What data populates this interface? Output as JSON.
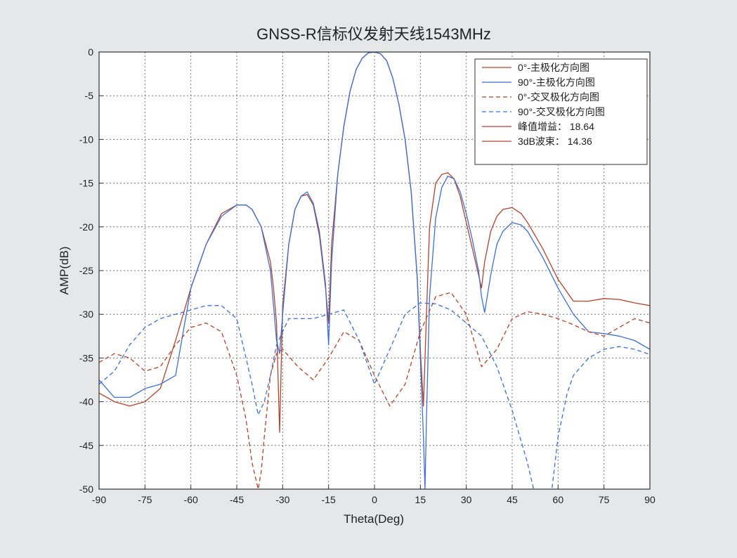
{
  "chart_data": {
    "type": "line",
    "title": "GNSS-R信标仪发射天线1543MHz",
    "xlabel": "Theta(Deg)",
    "ylabel": "AMP(dB)",
    "xlim": [
      -90,
      90
    ],
    "ylim": [
      -50,
      0
    ],
    "xticks": [
      -90,
      -75,
      -60,
      -45,
      -30,
      -15,
      0,
      15,
      30,
      45,
      60,
      75,
      90
    ],
    "yticks": [
      0,
      -5,
      -10,
      -15,
      -20,
      -25,
      -30,
      -35,
      -40,
      -45,
      -50
    ],
    "grid": true,
    "legend_position": "top-right",
    "series": [
      {
        "name": "0°-主极化方向图",
        "color": "#b5422e",
        "dash": "solid",
        "x": [
          -90,
          -85,
          -80,
          -75,
          -70,
          -65,
          -60,
          -55,
          -50,
          -45,
          -42,
          -40,
          -37,
          -34,
          -33,
          -32,
          -31,
          -30,
          -28,
          -26,
          -24,
          -22,
          -20,
          -18,
          -16,
          -15,
          -14,
          -12,
          -10,
          -8,
          -6,
          -4,
          -2,
          0,
          2,
          4,
          6,
          8,
          10,
          12,
          14,
          15,
          16,
          17,
          18,
          20,
          22,
          24,
          26,
          28,
          30,
          32,
          34,
          35,
          36,
          38,
          40,
          42,
          45,
          48,
          50,
          55,
          60,
          65,
          70,
          75,
          80,
          85,
          90
        ],
        "y": [
          -39,
          -40,
          -40.5,
          -40,
          -38.5,
          -33,
          -27,
          -22,
          -18.5,
          -17.5,
          -17.5,
          -18,
          -20,
          -24,
          -27,
          -31,
          -43.5,
          -29,
          -22,
          -18,
          -16.5,
          -16.3,
          -17.5,
          -21,
          -27,
          -31,
          -22,
          -14,
          -8.5,
          -4.5,
          -2,
          -0.7,
          -0.1,
          0,
          -0.2,
          -1,
          -3,
          -6,
          -10,
          -16,
          -26,
          -34,
          -40.5,
          -30,
          -20,
          -15,
          -14,
          -13.8,
          -14.5,
          -16.5,
          -19.5,
          -22.5,
          -25.5,
          -27,
          -24,
          -20.5,
          -18.8,
          -18,
          -17.8,
          -18.5,
          -19.5,
          -22.5,
          -26,
          -28.5,
          -28.5,
          -28.2,
          -28.3,
          -28.7,
          -29
        ]
      },
      {
        "name": "90°-主极化方向图",
        "color": "#3d6fd9",
        "dash": "solid",
        "x": [
          -90,
          -85,
          -80,
          -75,
          -70,
          -65,
          -60,
          -55,
          -50,
          -45,
          -42,
          -40,
          -37,
          -34,
          -33,
          -32,
          -31,
          -30,
          -28,
          -26,
          -24,
          -22,
          -20,
          -18,
          -16,
          -15,
          -14,
          -12,
          -10,
          -8,
          -6,
          -4,
          -2,
          0,
          2,
          4,
          6,
          8,
          10,
          12,
          14,
          15,
          16,
          16.5,
          17,
          18,
          20,
          22,
          24,
          26,
          28,
          30,
          32,
          34,
          35,
          36,
          38,
          40,
          42,
          45,
          48,
          50,
          55,
          60,
          65,
          70,
          75,
          80,
          85,
          90
        ],
        "y": [
          -37.5,
          -39.5,
          -39.5,
          -38.5,
          -38,
          -37,
          -27,
          -22,
          -18.8,
          -17.5,
          -17.5,
          -18,
          -20,
          -25,
          -29,
          -33,
          -34.5,
          -30,
          -22,
          -18,
          -16.5,
          -16,
          -17.3,
          -20.5,
          -26.5,
          -33.5,
          -24,
          -14,
          -8.5,
          -4.5,
          -2,
          -0.7,
          -0.1,
          0,
          -0.2,
          -1,
          -3,
          -6,
          -10,
          -16,
          -26,
          -35,
          -44,
          -50,
          -42,
          -28,
          -19,
          -15.5,
          -14.2,
          -14.5,
          -16,
          -18.5,
          -21.5,
          -25,
          -28,
          -29.8,
          -25.5,
          -22,
          -20.5,
          -19.5,
          -19.8,
          -20.5,
          -23.5,
          -27,
          -30,
          -32,
          -32.2,
          -32.5,
          -33,
          -34
        ]
      },
      {
        "name": "0°-交叉极化方向图",
        "color": "#b5422e",
        "dash": "dashed",
        "x": [
          -90,
          -85,
          -80,
          -75,
          -70,
          -65,
          -60,
          -55,
          -50,
          -45,
          -42,
          -40,
          -38,
          -37,
          -36,
          -34,
          -32,
          -30,
          -25,
          -20,
          -15,
          -10,
          -5,
          0,
          5,
          10,
          15,
          20,
          25,
          30,
          35,
          40,
          45,
          50,
          55,
          60,
          65,
          70,
          75,
          80,
          85,
          90
        ],
        "y": [
          -35.5,
          -34.5,
          -35,
          -36.5,
          -36,
          -33.5,
          -31.5,
          -31,
          -32,
          -37,
          -42,
          -47,
          -50,
          -48,
          -44,
          -37,
          -34.5,
          -34,
          -36,
          -37.5,
          -35,
          -32,
          -33,
          -37,
          -40.5,
          -38,
          -32,
          -28,
          -27.5,
          -30,
          -36,
          -34,
          -30.5,
          -29.7,
          -30,
          -30.5,
          -31.2,
          -32,
          -32.5,
          -31.5,
          -30.5,
          -31
        ]
      },
      {
        "name": "90°-交叉极化方向图",
        "color": "#3d6fd9",
        "dash": "dashed",
        "x": [
          -90,
          -85,
          -80,
          -75,
          -70,
          -65,
          -60,
          -55,
          -50,
          -45,
          -42,
          -40,
          -38,
          -36,
          -34,
          -32,
          -30,
          -28,
          -25,
          -20,
          -15,
          -10,
          -5,
          0,
          5,
          10,
          15,
          20,
          25,
          30,
          35,
          40,
          45,
          50,
          52,
          54,
          56,
          58,
          60,
          63,
          65,
          70,
          75,
          80,
          85,
          90
        ],
        "y": [
          -38,
          -36.5,
          -33.5,
          -31.5,
          -30.5,
          -30,
          -29.5,
          -29,
          -29,
          -30.5,
          -35,
          -38,
          -41.5,
          -40,
          -37,
          -33.5,
          -32,
          -30.5,
          -30.5,
          -30.5,
          -30,
          -29.5,
          -33,
          -38,
          -34,
          -30,
          -28.7,
          -28.8,
          -29.5,
          -31,
          -32.5,
          -36,
          -41,
          -47,
          -50,
          -52,
          -52,
          -50,
          -44,
          -39,
          -37,
          -35,
          -34,
          -33.7,
          -34,
          -34.6
        ]
      }
    ],
    "legend_extra": [
      {
        "label": "峰值增益：",
        "value": "18.64",
        "color": "#b5422e"
      },
      {
        "label": "3dB波束：",
        "value": "14.36",
        "color": "#b5422e"
      }
    ]
  }
}
